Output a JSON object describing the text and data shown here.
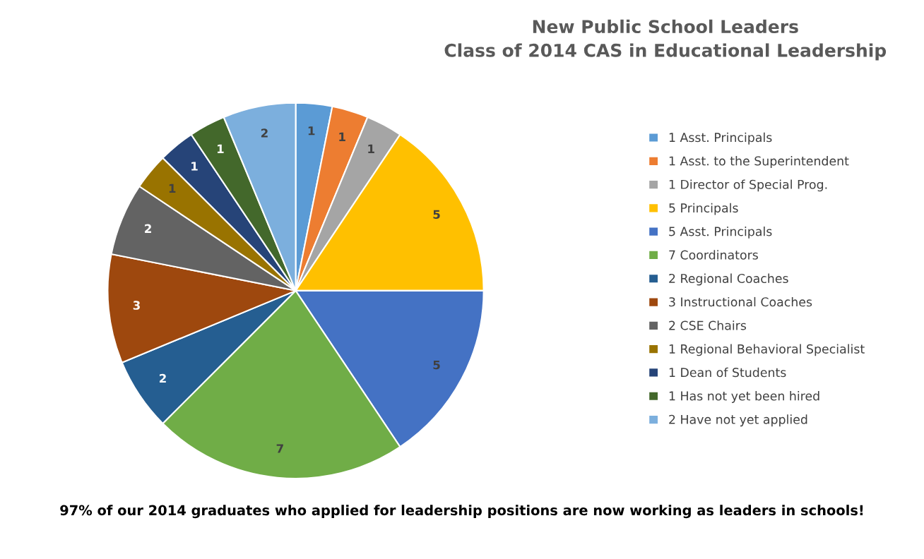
{
  "chart_data": {
    "type": "pie",
    "title": "New Public School Leaders\nClass of 2014 CAS in Educational Leadership",
    "categories": [
      "1 Asst. Principals",
      "1 Asst. to the Superintendent",
      "1 Director of Special Prog.",
      "5 Principals",
      "5 Asst. Principals",
      "7 Coordinators",
      "2 Regional Coaches",
      "3 Instructional Coaches",
      "2 CSE Chairs",
      "1 Regional Behavioral Specialist",
      "1 Dean of Students",
      "1 Has not yet been hired",
      "2 Have not yet applied"
    ],
    "values": [
      1,
      1,
      1,
      5,
      5,
      7,
      2,
      3,
      2,
      1,
      1,
      1,
      2
    ],
    "colors": [
      "#5b9bd5",
      "#ed7d31",
      "#a5a5a5",
      "#ffc000",
      "#4472c4",
      "#70ad47",
      "#255e91",
      "#9e480e",
      "#636363",
      "#997300",
      "#264478",
      "#43682b",
      "#7cafdd"
    ],
    "data_labels": true,
    "legend": "right",
    "annotations": [
      "97% of our 2014 graduates who applied for leadership positions are now working as leaders in schools!"
    ]
  }
}
